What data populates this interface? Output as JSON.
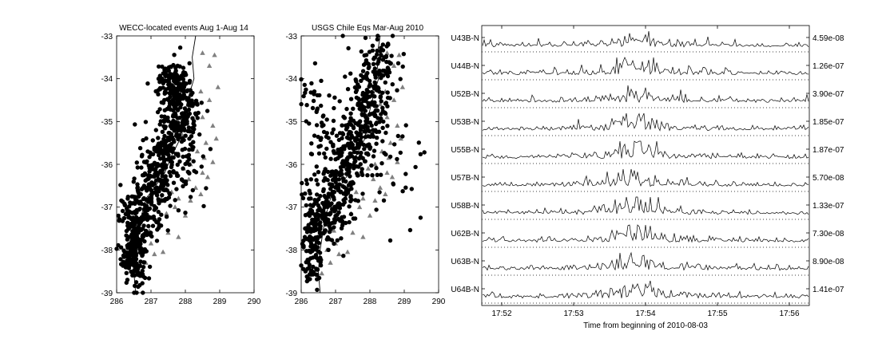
{
  "chart_data": [
    {
      "type": "scatter",
      "title": "WECC-located events Aug 1-Aug 14",
      "xlim": [
        286,
        290
      ],
      "ylim": [
        -39,
        -33
      ],
      "xticks": [
        "286",
        "287",
        "288",
        "289",
        "290"
      ],
      "yticks": [
        "-33",
        "-34",
        "-35",
        "-36",
        "-37",
        "-38",
        "-39"
      ],
      "series": [
        {
          "marker": "circle",
          "color": "#000000",
          "clusters": [
            {
              "center": [
                286.5,
                -38.1
              ],
              "spread": [
                0.18,
                0.35
              ],
              "count": 160
            },
            {
              "center": [
                286.65,
                -37.3
              ],
              "spread": [
                0.28,
                0.3
              ],
              "count": 150
            },
            {
              "center": [
                287.1,
                -36.5
              ],
              "spread": [
                0.3,
                0.35
              ],
              "count": 130
            },
            {
              "center": [
                287.4,
                -35.6
              ],
              "spread": [
                0.3,
                0.4
              ],
              "count": 120
            },
            {
              "center": [
                287.85,
                -34.7
              ],
              "spread": [
                0.3,
                0.45
              ],
              "count": 200
            },
            {
              "center": [
                287.6,
                -34.05
              ],
              "spread": [
                0.22,
                0.2
              ],
              "count": 80
            },
            {
              "center": [
                287.95,
                -36.2
              ],
              "spread": [
                0.35,
                0.45
              ],
              "count": 50
            }
          ]
        },
        {
          "marker": "triangle",
          "color": "#808080",
          "points": [
            [
              288.5,
              -33.4
            ],
            [
              288.85,
              -33.45
            ],
            [
              288.7,
              -33.7
            ],
            [
              288.95,
              -34.2
            ],
            [
              288.45,
              -34.3
            ],
            [
              288.7,
              -34.5
            ],
            [
              288.3,
              -34.6
            ],
            [
              288.5,
              -34.9
            ],
            [
              288.8,
              -35.1
            ],
            [
              288.9,
              -35.4
            ],
            [
              288.6,
              -35.5
            ],
            [
              288.35,
              -35.7
            ],
            [
              288.55,
              -35.85
            ],
            [
              288.8,
              -35.95
            ],
            [
              288.15,
              -36.0
            ],
            [
              287.95,
              -36.1
            ],
            [
              288.5,
              -36.2
            ],
            [
              288.65,
              -36.3
            ],
            [
              288.1,
              -36.35
            ],
            [
              288.3,
              -36.55
            ],
            [
              288.45,
              -36.7
            ],
            [
              287.6,
              -36.65
            ],
            [
              287.3,
              -36.8
            ],
            [
              287.8,
              -36.8
            ],
            [
              288.15,
              -36.85
            ],
            [
              287.7,
              -37.0
            ],
            [
              287.45,
              -37.15
            ],
            [
              288.0,
              -37.2
            ],
            [
              287.2,
              -37.3
            ],
            [
              286.95,
              -37.55
            ],
            [
              287.5,
              -37.6
            ],
            [
              287.8,
              -37.7
            ],
            [
              287.0,
              -37.85
            ],
            [
              287.35,
              -38.05
            ],
            [
              287.1,
              -38.1
            ],
            [
              286.85,
              -38.3
            ],
            [
              286.6,
              -38.55
            ],
            [
              286.75,
              -38.0
            ],
            [
              287.9,
              -35.3
            ]
          ]
        }
      ],
      "coastline": [
        [
          288.3,
          -33.0
        ],
        [
          288.2,
          -33.5
        ],
        [
          288.25,
          -34.0
        ],
        [
          288.1,
          -34.4
        ],
        [
          287.95,
          -34.9
        ],
        [
          287.85,
          -35.4
        ],
        [
          287.6,
          -35.8
        ],
        [
          287.4,
          -36.2
        ],
        [
          287.05,
          -36.6
        ],
        [
          286.85,
          -36.8
        ],
        [
          286.75,
          -37.1
        ],
        [
          286.65,
          -37.5
        ],
        [
          286.55,
          -38.0
        ],
        [
          286.5,
          -38.5
        ],
        [
          286.55,
          -39.0
        ]
      ]
    },
    {
      "type": "scatter",
      "title": "USGS Chile Eqs Mar-Aug 2010",
      "xlim": [
        286,
        290
      ],
      "ylim": [
        -39,
        -33
      ],
      "xticks": [
        "286",
        "287",
        "288",
        "289",
        "290"
      ],
      "yticks": [
        "-33",
        "-34",
        "-35",
        "-36",
        "-37",
        "-38",
        "-39"
      ],
      "series": [
        {
          "marker": "circle",
          "color": "#000000",
          "clusters": [
            {
              "center": [
                286.35,
                -38.0
              ],
              "spread": [
                0.15,
                0.45
              ],
              "count": 110
            },
            {
              "center": [
                286.75,
                -37.1
              ],
              "spread": [
                0.3,
                0.4
              ],
              "count": 140
            },
            {
              "center": [
                287.2,
                -36.3
              ],
              "spread": [
                0.35,
                0.4
              ],
              "count": 130
            },
            {
              "center": [
                287.6,
                -35.4
              ],
              "spread": [
                0.35,
                0.4
              ],
              "count": 130
            },
            {
              "center": [
                288.0,
                -34.4
              ],
              "spread": [
                0.3,
                0.55
              ],
              "count": 150
            },
            {
              "center": [
                288.4,
                -33.6
              ],
              "spread": [
                0.3,
                0.3
              ],
              "count": 40
            },
            {
              "center": [
                286.45,
                -34.9
              ],
              "spread": [
                0.25,
                0.6
              ],
              "count": 50
            },
            {
              "center": [
                288.6,
                -36.3
              ],
              "spread": [
                0.6,
                0.8
              ],
              "count": 30
            }
          ]
        },
        {
          "marker": "triangle",
          "color": "#808080",
          "points": [
            [
              288.5,
              -33.4
            ],
            [
              288.85,
              -33.45
            ],
            [
              288.7,
              -33.7
            ],
            [
              288.95,
              -34.2
            ],
            [
              288.45,
              -34.3
            ],
            [
              288.7,
              -34.5
            ],
            [
              288.3,
              -34.6
            ],
            [
              288.5,
              -34.9
            ],
            [
              288.8,
              -35.1
            ],
            [
              288.9,
              -35.4
            ],
            [
              288.6,
              -35.5
            ],
            [
              288.35,
              -35.7
            ],
            [
              288.55,
              -35.85
            ],
            [
              288.8,
              -35.95
            ],
            [
              288.15,
              -36.0
            ],
            [
              287.95,
              -36.1
            ],
            [
              288.5,
              -36.2
            ],
            [
              288.65,
              -36.3
            ],
            [
              288.1,
              -36.35
            ],
            [
              288.3,
              -36.55
            ],
            [
              288.45,
              -36.7
            ],
            [
              287.6,
              -36.65
            ],
            [
              287.3,
              -36.8
            ],
            [
              287.8,
              -36.8
            ],
            [
              288.15,
              -36.85
            ],
            [
              287.7,
              -37.0
            ],
            [
              287.45,
              -37.15
            ],
            [
              288.0,
              -37.2
            ],
            [
              287.2,
              -37.3
            ],
            [
              286.95,
              -37.55
            ],
            [
              287.5,
              -37.6
            ],
            [
              287.8,
              -37.7
            ],
            [
              287.0,
              -37.85
            ],
            [
              287.35,
              -38.05
            ],
            [
              287.1,
              -38.1
            ],
            [
              286.85,
              -38.3
            ],
            [
              286.6,
              -38.55
            ],
            [
              286.75,
              -38.0
            ],
            [
              287.9,
              -35.3
            ]
          ]
        }
      ],
      "coastline": [
        [
          288.3,
          -33.0
        ],
        [
          288.2,
          -33.5
        ],
        [
          288.25,
          -34.0
        ],
        [
          288.1,
          -34.4
        ],
        [
          287.95,
          -34.9
        ],
        [
          287.85,
          -35.4
        ],
        [
          287.6,
          -35.8
        ],
        [
          287.4,
          -36.2
        ],
        [
          287.05,
          -36.6
        ],
        [
          286.85,
          -36.8
        ],
        [
          286.75,
          -37.1
        ],
        [
          286.65,
          -37.5
        ],
        [
          286.55,
          -38.0
        ],
        [
          286.5,
          -38.5
        ],
        [
          286.55,
          -39.0
        ]
      ]
    },
    {
      "type": "line",
      "xlabel": "Time from beginning of 2010-08-03",
      "xticks": [
        "17:52",
        "17:53",
        "17:54",
        "17:55",
        "17:56"
      ],
      "peak_time_fraction": 0.47,
      "series": [
        {
          "name": "U43B-N",
          "scale": "4.59e-08"
        },
        {
          "name": "U44B-N",
          "scale": "1.26e-07"
        },
        {
          "name": "U52B-N",
          "scale": "3.90e-07"
        },
        {
          "name": "U53B-N",
          "scale": "1.85e-07"
        },
        {
          "name": "U55B-N",
          "scale": "1.87e-07"
        },
        {
          "name": "U57B-N",
          "scale": "5.70e-08"
        },
        {
          "name": "U58B-N",
          "scale": "1.33e-07"
        },
        {
          "name": "U62B-N",
          "scale": "7.30e-08"
        },
        {
          "name": "U63B-N",
          "scale": "8.90e-08"
        },
        {
          "name": "U64B-N",
          "scale": "1.41e-07"
        }
      ]
    }
  ]
}
